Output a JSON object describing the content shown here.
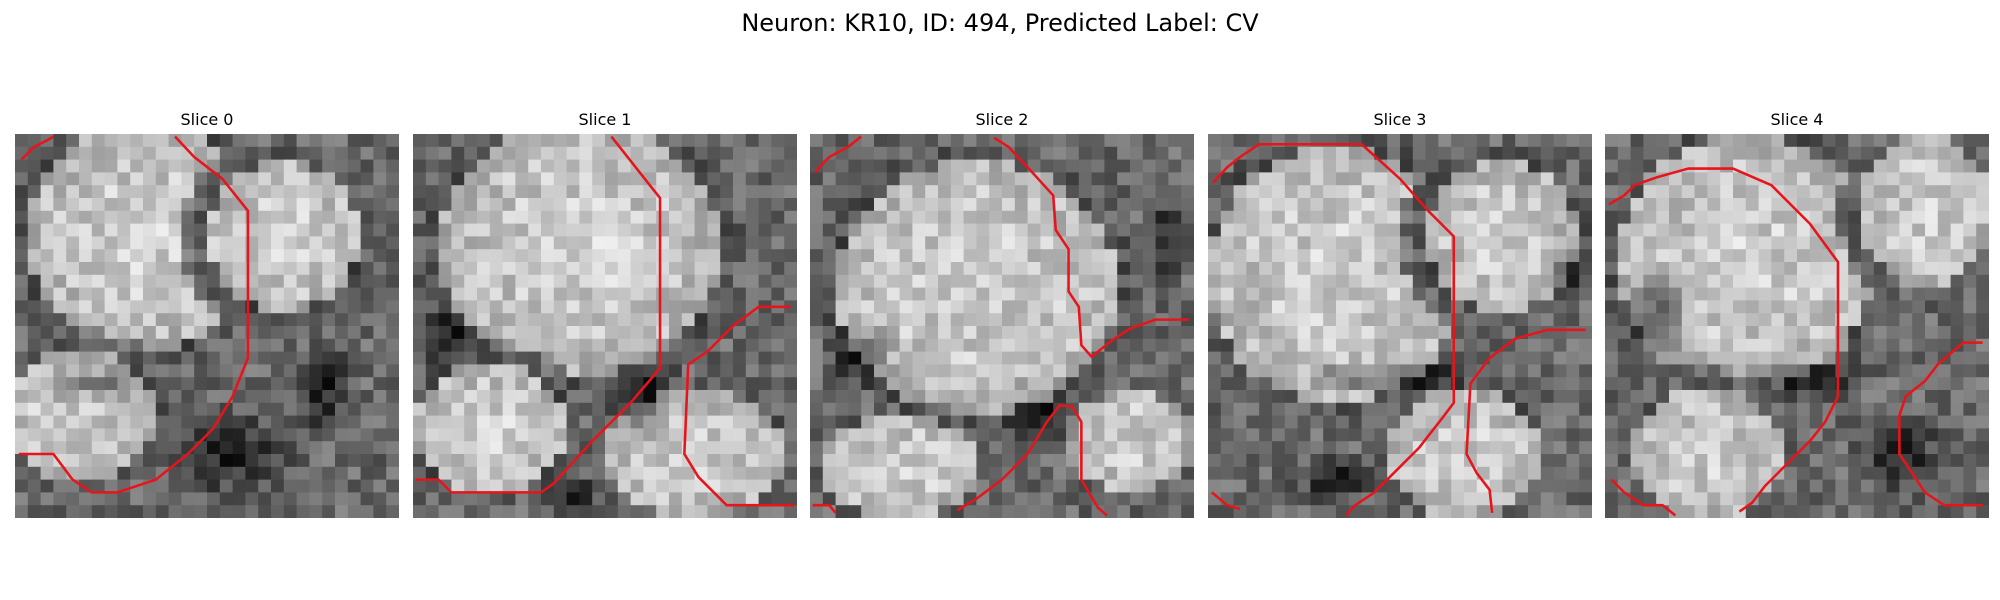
{
  "figure": {
    "title": "Neuron: KR10, ID: 494, Predicted Label: CV"
  },
  "panels": [
    {
      "title": "Slice 0"
    },
    {
      "title": "Slice 1"
    },
    {
      "title": "Slice 2"
    },
    {
      "title": "Slice 3"
    },
    {
      "title": "Slice 4"
    }
  ],
  "colors": {
    "contour": "#e8141b",
    "background": "#ffffff"
  }
}
